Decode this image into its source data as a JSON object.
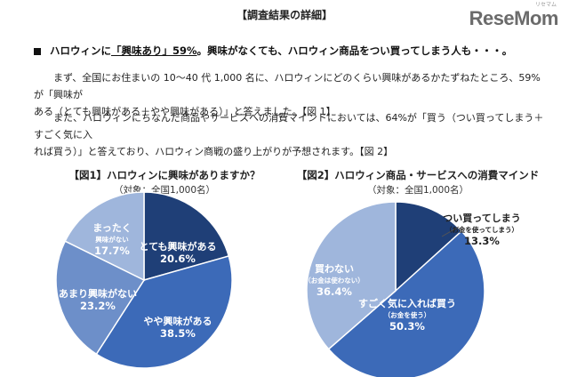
{
  "header": {
    "section_title": "【調査結果の詳細】",
    "logo": "ReseMom",
    "logo_sub": "リセマム"
  },
  "headline": {
    "prefix": "ハロウィンに",
    "emph": "「興味あり」59%",
    "suffix": "。興味がなくても、ハロウィン商品をつい買ってしまう人も・・・。"
  },
  "paragraphs": {
    "p1_line1": "まず、全国にお住まいの 10～40 代 1,000 名に、ハロウィンにどのくらい興味があるかたずねたところ、59%が「興味が",
    "p1_line2": "ある（とても興味がある＋やや興味がある）」と答えました。【図 1】",
    "p2_line1": "また、ハロウィンにちなんだ商品やサービスへの消費マインドにおいては、64%が「買う（つい買ってしまう＋すごく気に入",
    "p2_line2": "れば買う）」と答えており、ハロウィン商戦の盛り上がりが予想されます。【図 2】"
  },
  "colors": {
    "dark_blue": "#1f3f77",
    "blue": "#3c6ab8",
    "mid_blue": "#6d8fc9",
    "light_blue": "#9fb6dc",
    "white": "#ffffff",
    "label_dark": "#222222"
  },
  "chart_data": [
    {
      "type": "pie",
      "title": "【図1】ハロウィンに興味がありますか？",
      "subtitle": "（対象：全国1,000名）",
      "slices": [
        {
          "label": "とても興味がある",
          "sub": "",
          "value": 20.6,
          "display": "20.6%",
          "color": "#1f3f77"
        },
        {
          "label": "やや興味がある",
          "sub": "",
          "value": 38.5,
          "display": "38.5%",
          "color": "#3c6ab8"
        },
        {
          "label": "あまり興味がない",
          "sub": "",
          "value": 23.2,
          "display": "23.2%",
          "color": "#6d8fc9"
        },
        {
          "label": "まったく",
          "sub": "興味がない",
          "value": 17.7,
          "display": "17.7%",
          "color": "#9fb6dc"
        }
      ]
    },
    {
      "type": "pie",
      "title": "【図2】ハロウィン商品・サービスへの消費マインド",
      "subtitle": "（対象：全国1,000名）",
      "slices": [
        {
          "label": "つい買ってしまう",
          "sub": "（お金を使ってしまう）",
          "value": 13.3,
          "display": "13.3%",
          "color": "#1f3f77"
        },
        {
          "label": "すごく気に入れば買う",
          "sub": "（お金を使う）",
          "value": 50.3,
          "display": "50.3%",
          "color": "#3c6ab8"
        },
        {
          "label": "買わない",
          "sub": "（お金は使わない）",
          "value": 36.4,
          "display": "36.4%",
          "color": "#9fb6dc"
        }
      ]
    }
  ]
}
